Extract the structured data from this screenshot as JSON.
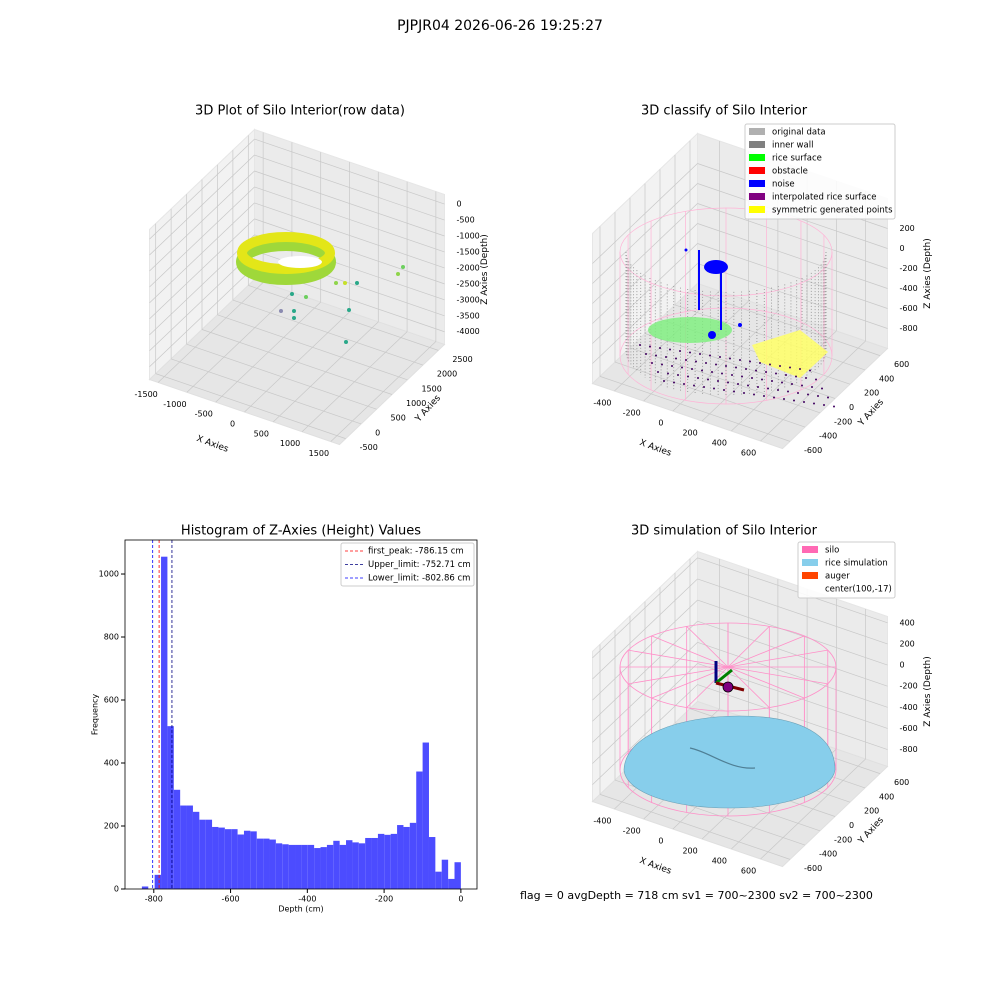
{
  "title": "PJPJR04 2026-06-26 19:25:27",
  "footer": "flag = 0     avgDepth = 718 cm  sv1 = 700~2300  sv2 = 700~2300",
  "chart_data": [
    {
      "type": "scatter3d",
      "title": "3D Plot of Silo Interior(row data)",
      "xlabel": "X Axies",
      "ylabel": "Y Axies",
      "zlabel": "Z Axies (Depth)",
      "xlim": [
        -1650,
        1650
      ],
      "ylim": [
        -700,
        2700
      ],
      "zlim": [
        -4400,
        300
      ],
      "xticks": [
        -1500,
        -1000,
        -500,
        0,
        500,
        1000,
        1500
      ],
      "yticks": [
        -500,
        0,
        500,
        1000,
        1500,
        2000,
        2500
      ],
      "zticks": [
        0,
        -500,
        -1000,
        -1500,
        -2000,
        -2500,
        -3000,
        -3500,
        -4000
      ]
    },
    {
      "type": "scatter3d",
      "title": "3D classify of Silo Interior",
      "xlabel": "X Axies",
      "ylabel": "Y Axies",
      "zlabel": "Z Axies (Depth)",
      "xlim": [
        -550,
        750
      ],
      "ylim": [
        -700,
        700
      ],
      "zlim": [
        -1000,
        500
      ],
      "xticks": [
        -400,
        -200,
        0,
        200,
        400,
        600
      ],
      "yticks": [
        -600,
        -400,
        -200,
        0,
        200,
        400,
        600
      ],
      "zticks": [
        200,
        0,
        -200,
        -400,
        -600,
        -800
      ],
      "legend": [
        {
          "name": "original data",
          "color": "#b0b0b0"
        },
        {
          "name": "inner wall",
          "color": "#808080"
        },
        {
          "name": "rice surface",
          "color": "#00ff00"
        },
        {
          "name": "obstacle",
          "color": "#ff0000"
        },
        {
          "name": "noise",
          "color": "#0000ff"
        },
        {
          "name": "interpolated rice surface",
          "color": "#800080"
        },
        {
          "name": "symmetric generated points",
          "color": "#ffff00"
        }
      ]
    },
    {
      "type": "histogram",
      "title": "Histogram of Z-Axies (Height) Values",
      "xlabel": "Depth (cm)",
      "ylabel": "Frequency",
      "color": "#4c4cff",
      "xlim": [
        -875,
        42
      ],
      "ylim": [
        0,
        1108
      ],
      "xticks": [
        -800,
        -600,
        -400,
        -200,
        0
      ],
      "yticks": [
        0,
        200,
        400,
        600,
        800,
        1000
      ],
      "bins": [
        -831.0,
        -814.4,
        -797.8,
        -781.1,
        -764.5,
        -747.9,
        -731.3,
        -714.7,
        -698.0,
        -681.4,
        -664.8,
        -648.2,
        -631.6,
        -614.9,
        -598.3,
        -581.7,
        -565.1,
        -548.5,
        -531.8,
        -515.2,
        -498.6,
        -482.0,
        -465.4,
        -448.7,
        -432.1,
        -415.5,
        -398.9,
        -382.3,
        -365.6,
        -349.0,
        -332.4,
        -315.8,
        -299.2,
        -282.5,
        -265.9,
        -249.3,
        -232.7,
        -216.1,
        -199.4,
        -182.8,
        -166.2,
        -149.6,
        -133.0,
        -116.3,
        -99.7,
        -83.1,
        -66.5,
        -49.9,
        -33.2,
        -16.6,
        0
      ],
      "values": [
        8,
        0,
        45,
        1055,
        517,
        315,
        265,
        265,
        245,
        220,
        220,
        197,
        195,
        190,
        190,
        173,
        185,
        183,
        160,
        160,
        157,
        145,
        142,
        140,
        140,
        140,
        140,
        130,
        133,
        140,
        153,
        140,
        155,
        148,
        145,
        162,
        162,
        175,
        172,
        175,
        203,
        197,
        210,
        373,
        465,
        165,
        55,
        93,
        32,
        85
      ],
      "vlines": [
        {
          "label": "first_peak: -786.15 cm",
          "value": -786.15,
          "color": "#ff0000"
        },
        {
          "label": "Upper_limit: -752.71 cm",
          "value": -752.71,
          "color": "#000080"
        },
        {
          "label": "Lower_limit: -802.86 cm",
          "value": -802.86,
          "color": "#0000ff"
        }
      ]
    },
    {
      "type": "scatter3d",
      "title": "3D simulation of Silo Interior",
      "xlabel": "X Axies",
      "ylabel": "Y Axies",
      "zlabel": "Z Axies (Depth)",
      "xlim": [
        -550,
        750
      ],
      "ylim": [
        -700,
        700
      ],
      "zlim": [
        -960,
        460
      ],
      "xticks": [
        -400,
        -200,
        0,
        200,
        400,
        600
      ],
      "yticks": [
        -600,
        -400,
        -200,
        0,
        200,
        400,
        600
      ],
      "zticks": [
        400,
        200,
        0,
        -200,
        -400,
        -600,
        -800
      ],
      "legend": [
        {
          "name": "silo",
          "color": "#ff69b4"
        },
        {
          "name": "rice simulation",
          "color": "#87ceeb"
        },
        {
          "name": "auger",
          "color": "#ff4500"
        },
        {
          "name": "center(100,-17)"
        }
      ]
    }
  ]
}
